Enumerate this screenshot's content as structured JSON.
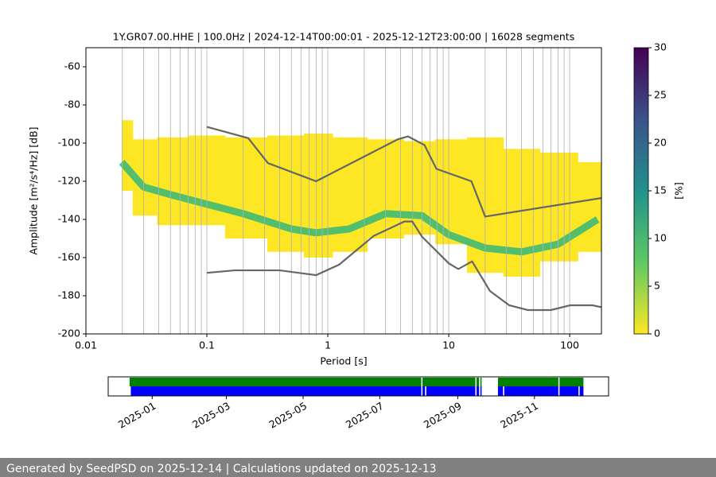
{
  "chart_data": [
    {
      "type": "ppsd",
      "title": "1Y.GR07.00.HHE | 100.0Hz | 2024-12-14T00:00:01 - 2025-12-12T23:00:00 | 16028 segments",
      "x_label": "Period [s]",
      "y_label": "Amplitude [m²/s⁴/Hz] [dB]",
      "log_x": true,
      "xlim": [
        0.01,
        183
      ],
      "xticks": [
        0.01,
        0.1,
        1,
        10,
        100
      ],
      "xminor": [
        0.02,
        0.03,
        0.04,
        0.05,
        0.06,
        0.07,
        0.08,
        0.09,
        0.2,
        0.3,
        0.4,
        0.5,
        0.6,
        0.7,
        0.8,
        0.9,
        2,
        3,
        4,
        5,
        6,
        7,
        8,
        9,
        20,
        30,
        40,
        50,
        60,
        70,
        80,
        90
      ],
      "ylim": [
        -200,
        -50
      ],
      "yticks": [
        -200,
        -180,
        -160,
        -140,
        -120,
        -100,
        -80,
        -60
      ],
      "xgrid": true,
      "density": {
        "color": "#fde725",
        "mode_color": "#35b779",
        "periods": [
          0.0198,
          0.03,
          0.05,
          0.1,
          0.2,
          0.5,
          0.8,
          1.5,
          3,
          6,
          10,
          20,
          40,
          80,
          170
        ],
        "lower": [
          -125,
          -138,
          -143,
          -143,
          -150,
          -157,
          -160,
          -157,
          -150,
          -148,
          -153,
          -168,
          -170,
          -162,
          -157
        ],
        "upper": [
          -88,
          -98,
          -97,
          -96,
          -97,
          -96,
          -95,
          -97,
          -98,
          -99,
          -98,
          -97,
          -103,
          -105,
          -110
        ],
        "mode": [
          -110,
          -123,
          -127,
          -132,
          -137,
          -145,
          -147,
          -145,
          -137,
          -138,
          -148,
          -155,
          -157,
          -153,
          -140
        ]
      },
      "series": [
        {
          "color": "#666666",
          "x": [
            0.1,
            0.22,
            0.32,
            0.8,
            3.8,
            4.6,
            6.3,
            7.9,
            15.4,
            20,
            183
          ],
          "values": [
            -91.5,
            -97.4,
            -110.5,
            -120,
            -98,
            -96.5,
            -101,
            -113.5,
            -120,
            -138.5,
            -128.8
          ]
        },
        {
          "color": "#666666",
          "x": [
            0.1,
            0.17,
            0.4,
            0.8,
            1.24,
            2.4,
            4.3,
            5,
            6,
            10,
            12,
            15.6,
            21.9,
            31.6,
            45,
            70,
            101,
            154,
            183
          ],
          "values": [
            -168,
            -166.7,
            -166.7,
            -169.2,
            -163.7,
            -148.6,
            -141.1,
            -141.1,
            -149,
            -163,
            -166,
            -162,
            -177.5,
            -185,
            -187.5,
            -187.5,
            -185,
            -185,
            -186
          ]
        }
      ],
      "colorbar": {
        "label": "[%]",
        "ylim": [
          0,
          30
        ],
        "yticks": [
          0,
          5,
          10,
          15,
          20,
          25,
          30
        ],
        "colors": [
          "#fde725",
          "#5ec962",
          "#21918c",
          "#3b528b",
          "#440154"
        ]
      }
    },
    {
      "type": "timeline",
      "xlim": [
        "2024-11-27",
        "2025-12-30"
      ],
      "xticks": [
        "2025-01",
        "2025-03",
        "2025-05",
        "2025-07",
        "2025-09",
        "2025-11"
      ],
      "rows": [
        {
          "color": "#008000",
          "intervals": [
            [
              "2024-12-14",
              "2025-08-03"
            ],
            [
              "2025-08-04",
              "2025-09-15"
            ],
            [
              "2025-09-16",
              "2025-09-18"
            ],
            [
              "2025-09-19",
              "2025-09-20"
            ],
            [
              "2025-10-03",
              "2025-11-20"
            ],
            [
              "2025-11-21",
              "2025-12-10"
            ]
          ]
        },
        {
          "color": "#0000ff",
          "intervals": [
            [
              "2024-12-15",
              "2025-08-03"
            ],
            [
              "2025-08-04",
              "2025-08-06"
            ],
            [
              "2025-08-07",
              "2025-09-15"
            ],
            [
              "2025-09-16",
              "2025-09-18"
            ],
            [
              "2025-09-19",
              "2025-09-20"
            ],
            [
              "2025-10-03",
              "2025-10-07"
            ],
            [
              "2025-10-08",
              "2025-11-20"
            ],
            [
              "2025-11-21",
              "2025-12-06"
            ],
            [
              "2025-12-07",
              "2025-12-10"
            ]
          ]
        }
      ]
    }
  ],
  "footer": {
    "text": "Generated by SeedPSD on 2025-12-14 | Calculations updated on 2025-12-13"
  }
}
